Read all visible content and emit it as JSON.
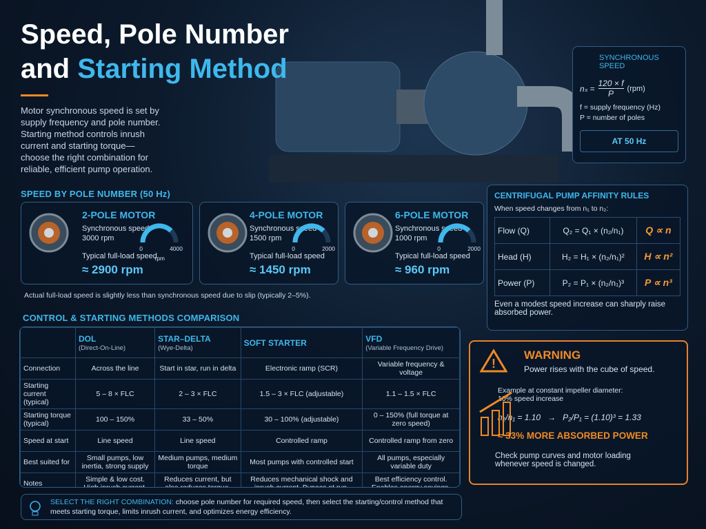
{
  "header": {
    "title_line1": "Speed, Pole Number",
    "title_line2_white": "and",
    "title_line2_blue": "Starting Method",
    "intro": "Motor synchronous speed is set by supply frequency and pole number. Starting method controls inrush current and starting torque—choose the right combination for reliable, efficient pump operation."
  },
  "sync_box": {
    "title": "SYNCHRONOUS SPEED",
    "lhs": "nₛ =",
    "numerator": "120 × f",
    "denominator": "P",
    "unit": "(rpm)",
    "definitions": [
      "f = supply frequency (Hz)",
      "P = number of poles"
    ],
    "button": "AT 50 Hz"
  },
  "poles": {
    "title": "SPEED BY POLE NUMBER (50 Hz)",
    "cards": [
      {
        "name": "2-POLE MOTOR",
        "sync_label": "Synchronous speed",
        "sync_value": "3000 rpm",
        "gauge_min": "0",
        "gauge_max": "4000",
        "gauge_unit": "rpm",
        "full_load_label": "Typical full-load speed",
        "full_load_value": "≈ 2900 rpm"
      },
      {
        "name": "4-POLE MOTOR",
        "sync_label": "Synchronous speed",
        "sync_value": "1500 rpm",
        "gauge_min": "0",
        "gauge_max": "2000",
        "full_load_label": "Typical full-load speed",
        "full_load_value": "≈ 1450 rpm"
      },
      {
        "name": "6-POLE MOTOR",
        "sync_label": "Synchronous speed",
        "sync_value": "1000 rpm",
        "gauge_min": "0",
        "gauge_max": "2000",
        "full_load_label": "Typical full-load speed",
        "full_load_value": "≈ 960 rpm"
      }
    ],
    "footnote": "Actual full-load speed is slightly less than synchronous speed due to slip (typically 2–5%)."
  },
  "affinity": {
    "title": "CENTRIFUGAL PUMP AFFINITY RULES",
    "intro": "When speed changes from n₁ to n₂:",
    "rows": [
      {
        "label": "Flow (Q)",
        "formula": "Q₂ = Q₁ × (n₂/n₁)",
        "proportion": "Q ∝ n"
      },
      {
        "label": "Head (H)",
        "formula": "H₂ = H₁ × (n₂/n₁)²",
        "proportion": "H ∝ n²"
      },
      {
        "label": "Power (P)",
        "formula": "P₂ = P₁ × (n₂/n₁)³",
        "proportion": "P ∝ n³"
      }
    ],
    "note": "Even a modest speed increase can sharply raise absorbed power."
  },
  "comparison": {
    "title": "CONTROL & STARTING METHODS COMPARISON",
    "columns": [
      {
        "name": "DOL",
        "sub": "(Direct-On-Line)"
      },
      {
        "name": "STAR–DELTA",
        "sub": "(Wye-Delta)"
      },
      {
        "name": "SOFT STARTER"
      },
      {
        "name": "VFD",
        "sub": "(Variable Frequency Drive)"
      }
    ],
    "rows": [
      [
        "Connection",
        "Across the line",
        "Start in star, run in delta",
        "Electronic ramp (SCR)",
        "Variable frequency & voltage"
      ],
      [
        "Starting current (typical)",
        "5 – 8 × FLC",
        "2 – 3 × FLC",
        "1.5 – 3 × FLC (adjustable)",
        "1.1 – 1.5 × FLC"
      ],
      [
        "Starting torque (typical)",
        "100 – 150%",
        "33 – 50%",
        "30 – 100% (adjustable)",
        "0 – 150% (full torque at zero speed)"
      ],
      [
        "Speed at start",
        "Line speed",
        "Line speed",
        "Controlled ramp",
        "Controlled ramp from zero"
      ],
      [
        "Best suited for",
        "Small pumps, low inertia, strong supply",
        "Medium pumps, medium torque",
        "Most pumps with controlled start",
        "All pumps, especially variable duty"
      ],
      [
        "Notes",
        "Simple & low cost. High inrush current.",
        "Reduces current, but also reduces torque.",
        "Reduces mechanical shock and inrush current. Bypass at run.",
        "Best efficiency control. Enables energy savings."
      ]
    ]
  },
  "warning": {
    "title": "WARNING",
    "subtitle": "Power rises with the cube of speed.",
    "example": "Example at constant impeller diameter: 10% speed increase",
    "formula_left": "n₂/n₁ = 1.10",
    "arrow": "→",
    "formula_right": "P₂/P₁ = (1.10)³ = 1.33",
    "result": "≈ 33% MORE ABSORBED POWER",
    "note": "Check pump curves and motor loading whenever speed is changed."
  },
  "footer": {
    "highlight": "SELECT THE RIGHT COMBINATION:",
    "text": "choose pole number for required speed, then select the starting/control method that meets starting torque, limits inrush current, and optimizes energy efficiency."
  }
}
